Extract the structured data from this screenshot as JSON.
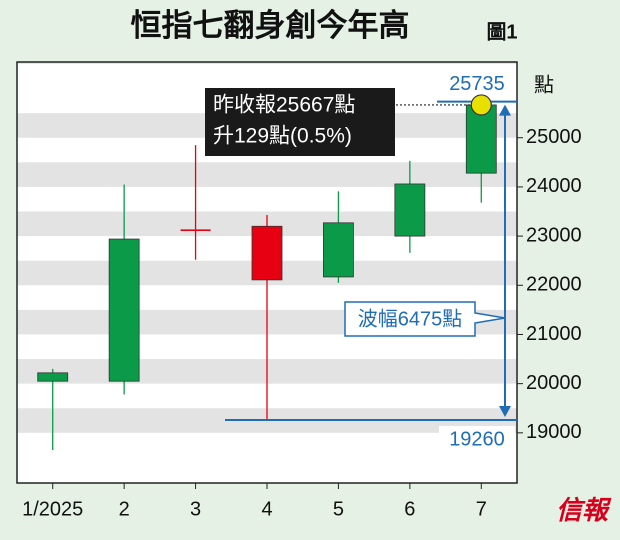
{
  "chart_data": {
    "type": "candlestick",
    "title": "恒指七翻身創今年高",
    "figure_label": "圖1",
    "categories": [
      "1/2025",
      "2",
      "3",
      "4",
      "5",
      "6",
      "7"
    ],
    "open": [
      20050,
      20050,
      23120,
      23200,
      22170,
      23000,
      24280
    ],
    "high": [
      20300,
      24050,
      24850,
      23430,
      23910,
      24530,
      25735
    ],
    "low": [
      18650,
      19780,
      22520,
      19260,
      22050,
      22660,
      23680
    ],
    "close": [
      20220,
      22940,
      23100,
      22110,
      23270,
      24060,
      25667
    ],
    "up_color": "#0a9a48",
    "down_color": "#e60012",
    "ylim": [
      17980,
      26540
    ],
    "yticks": [
      19000,
      20000,
      21000,
      22000,
      23000,
      24000,
      25000
    ],
    "y_unit": "點",
    "grid": true,
    "annotations": {
      "high": 25735,
      "low": 19260,
      "note_lines": [
        "昨收報25667點",
        "升129點(0.5%)"
      ],
      "range": "波幅6475點",
      "color": "#1f6db5"
    },
    "source": "信報"
  }
}
